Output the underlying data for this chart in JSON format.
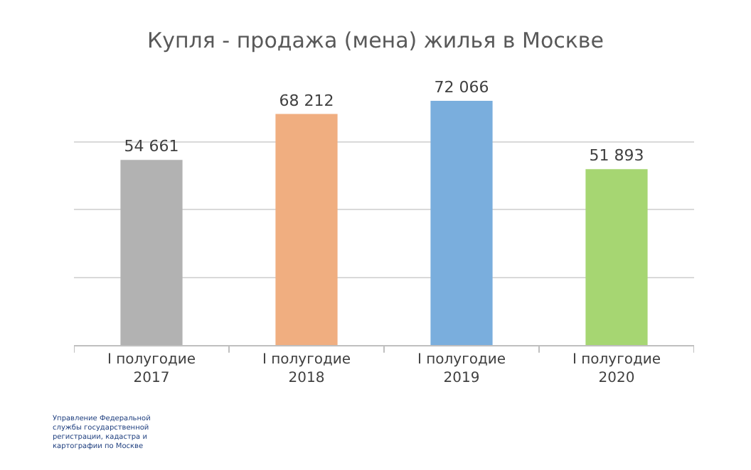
{
  "chart_data": {
    "type": "bar",
    "title": "Купля - продажа (мена) жилья в Москве",
    "categories": [
      "I полугодие\n2017",
      "I полугодие\n2018",
      "I полугодие\n2019",
      "I полугодие\n2020"
    ],
    "values": [
      54661,
      68212,
      72066,
      51893
    ],
    "colors": [
      "#b2b2b2",
      "#f0ae80",
      "#7aaedd",
      "#a6d672"
    ],
    "value_labels": [
      "54 661",
      "68 212",
      "72 066",
      "51 893"
    ],
    "grid": "y",
    "tick_labels": "x",
    "annotations": [
      "Управление Федеральной\nслужбы государственной\nрегистрации, кадастра и\nкартографии по Москве"
    ]
  }
}
